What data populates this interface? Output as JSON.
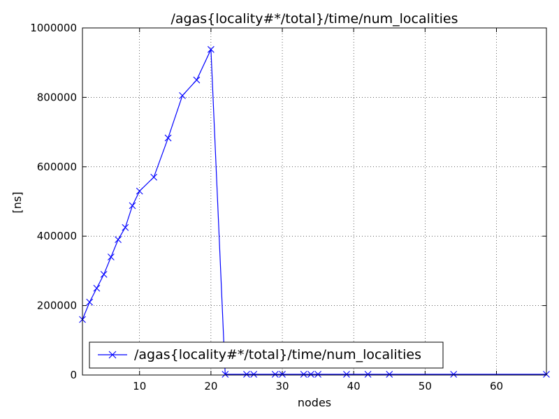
{
  "chart_data": {
    "type": "line",
    "title": "/agas{locality#*/total}/time/num_localities",
    "xlabel": "nodes",
    "ylabel": "[ns]",
    "xlim": [
      2,
      67
    ],
    "ylim": [
      0,
      1000000
    ],
    "grid": true,
    "legend": "lower-left",
    "x_ticks": [
      10,
      20,
      30,
      40,
      50,
      60
    ],
    "y_ticks": [
      0,
      200000,
      400000,
      600000,
      800000,
      1000000
    ],
    "series": [
      {
        "name": "/agas{locality#*/total}/time/num_localities",
        "color": "#0000ff",
        "marker": "x",
        "x": [
          2,
          3,
          4,
          5,
          6,
          7,
          8,
          9,
          10,
          12,
          14,
          16,
          18,
          20,
          22,
          25,
          26,
          29,
          30,
          33,
          34,
          35,
          39,
          42,
          45,
          54,
          67
        ],
        "y": [
          160000,
          210000,
          250000,
          290000,
          340000,
          390000,
          425000,
          488000,
          530000,
          570000,
          683000,
          805000,
          850000,
          938000,
          2000,
          2000,
          2000,
          2000,
          2000,
          2000,
          2000,
          2000,
          2000,
          2000,
          2000,
          2000,
          2000
        ]
      }
    ]
  }
}
